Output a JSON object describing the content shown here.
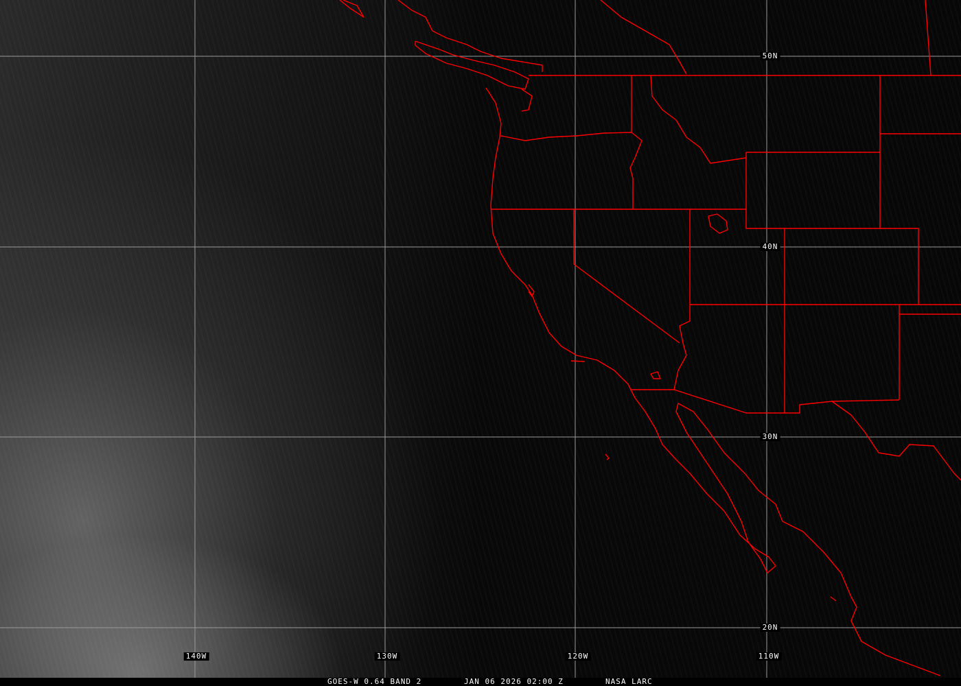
{
  "grid": {
    "longitudes": [
      "140W",
      "130W",
      "120W",
      "110W"
    ],
    "latitudes": [
      "50N",
      "40N",
      "30N",
      "20N"
    ],
    "grid_color": "#9a9a9a"
  },
  "boundaries_color": "#ff0000",
  "footer": {
    "product": "GOES-W 0.64 BAND 2",
    "datetime": "JAN 06 2026 02:00 Z",
    "source": "NASA LARC"
  }
}
